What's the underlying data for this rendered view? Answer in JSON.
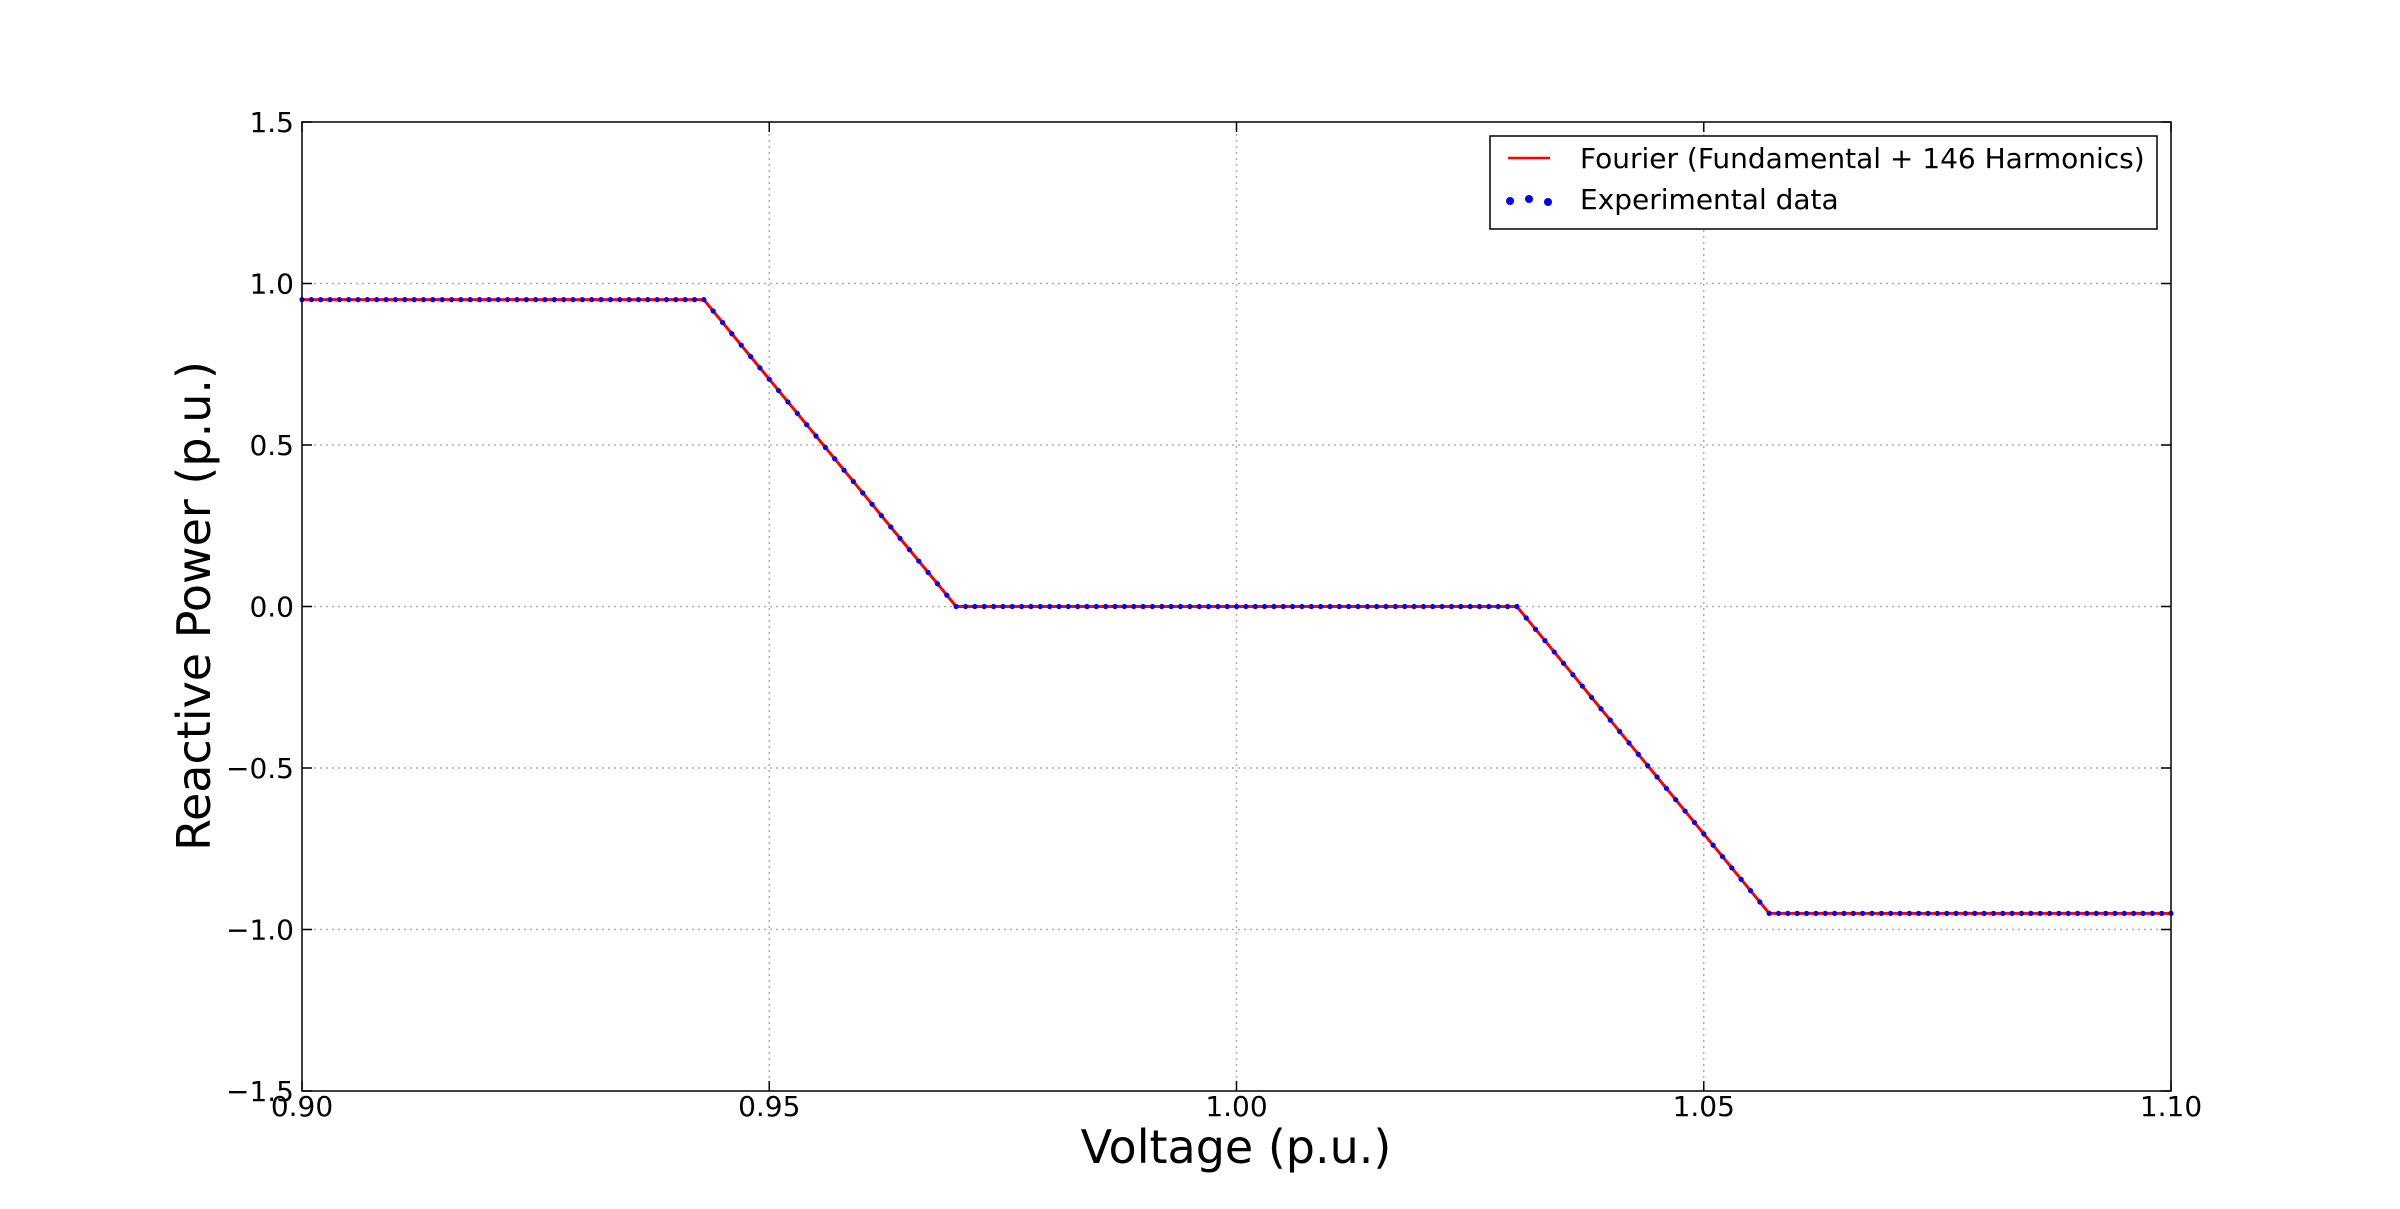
{
  "chart_data": {
    "type": "line",
    "title": "",
    "xlabel": "Voltage (p.u.)",
    "ylabel": "Reactive Power (p.u.)",
    "xlim": [
      0.9,
      1.1
    ],
    "ylim": [
      -1.5,
      1.5
    ],
    "xticks": [
      0.9,
      0.95,
      1.0,
      1.05,
      1.1
    ],
    "xtick_labels": [
      "0.90",
      "0.95",
      "1.00",
      "1.05",
      "1.10"
    ],
    "yticks": [
      -1.5,
      -1.0,
      -0.5,
      0.0,
      0.5,
      1.0,
      1.5
    ],
    "ytick_labels": [
      "−1.5",
      "−1.0",
      "−0.5",
      "0.0",
      "0.5",
      "1.0",
      "1.5"
    ],
    "grid": true,
    "legend_position": "top-right",
    "series": [
      {
        "name": "Fourier (Fundamental + 146 Harmonics)",
        "style": "line",
        "color": "#ff0000",
        "x": [
          0.9,
          0.943,
          0.97,
          1.03,
          1.057,
          1.1
        ],
        "y": [
          0.95,
          0.95,
          0.0,
          0.0,
          -0.95,
          -0.95
        ]
      },
      {
        "name": "Experimental data",
        "style": "markers",
        "color": "#0000ff",
        "x": [
          0.9,
          0.943,
          0.97,
          1.03,
          1.057,
          1.1
        ],
        "y": [
          0.95,
          0.95,
          0.0,
          0.0,
          -0.95,
          -0.95
        ],
        "sample_step": 0.001
      }
    ]
  }
}
